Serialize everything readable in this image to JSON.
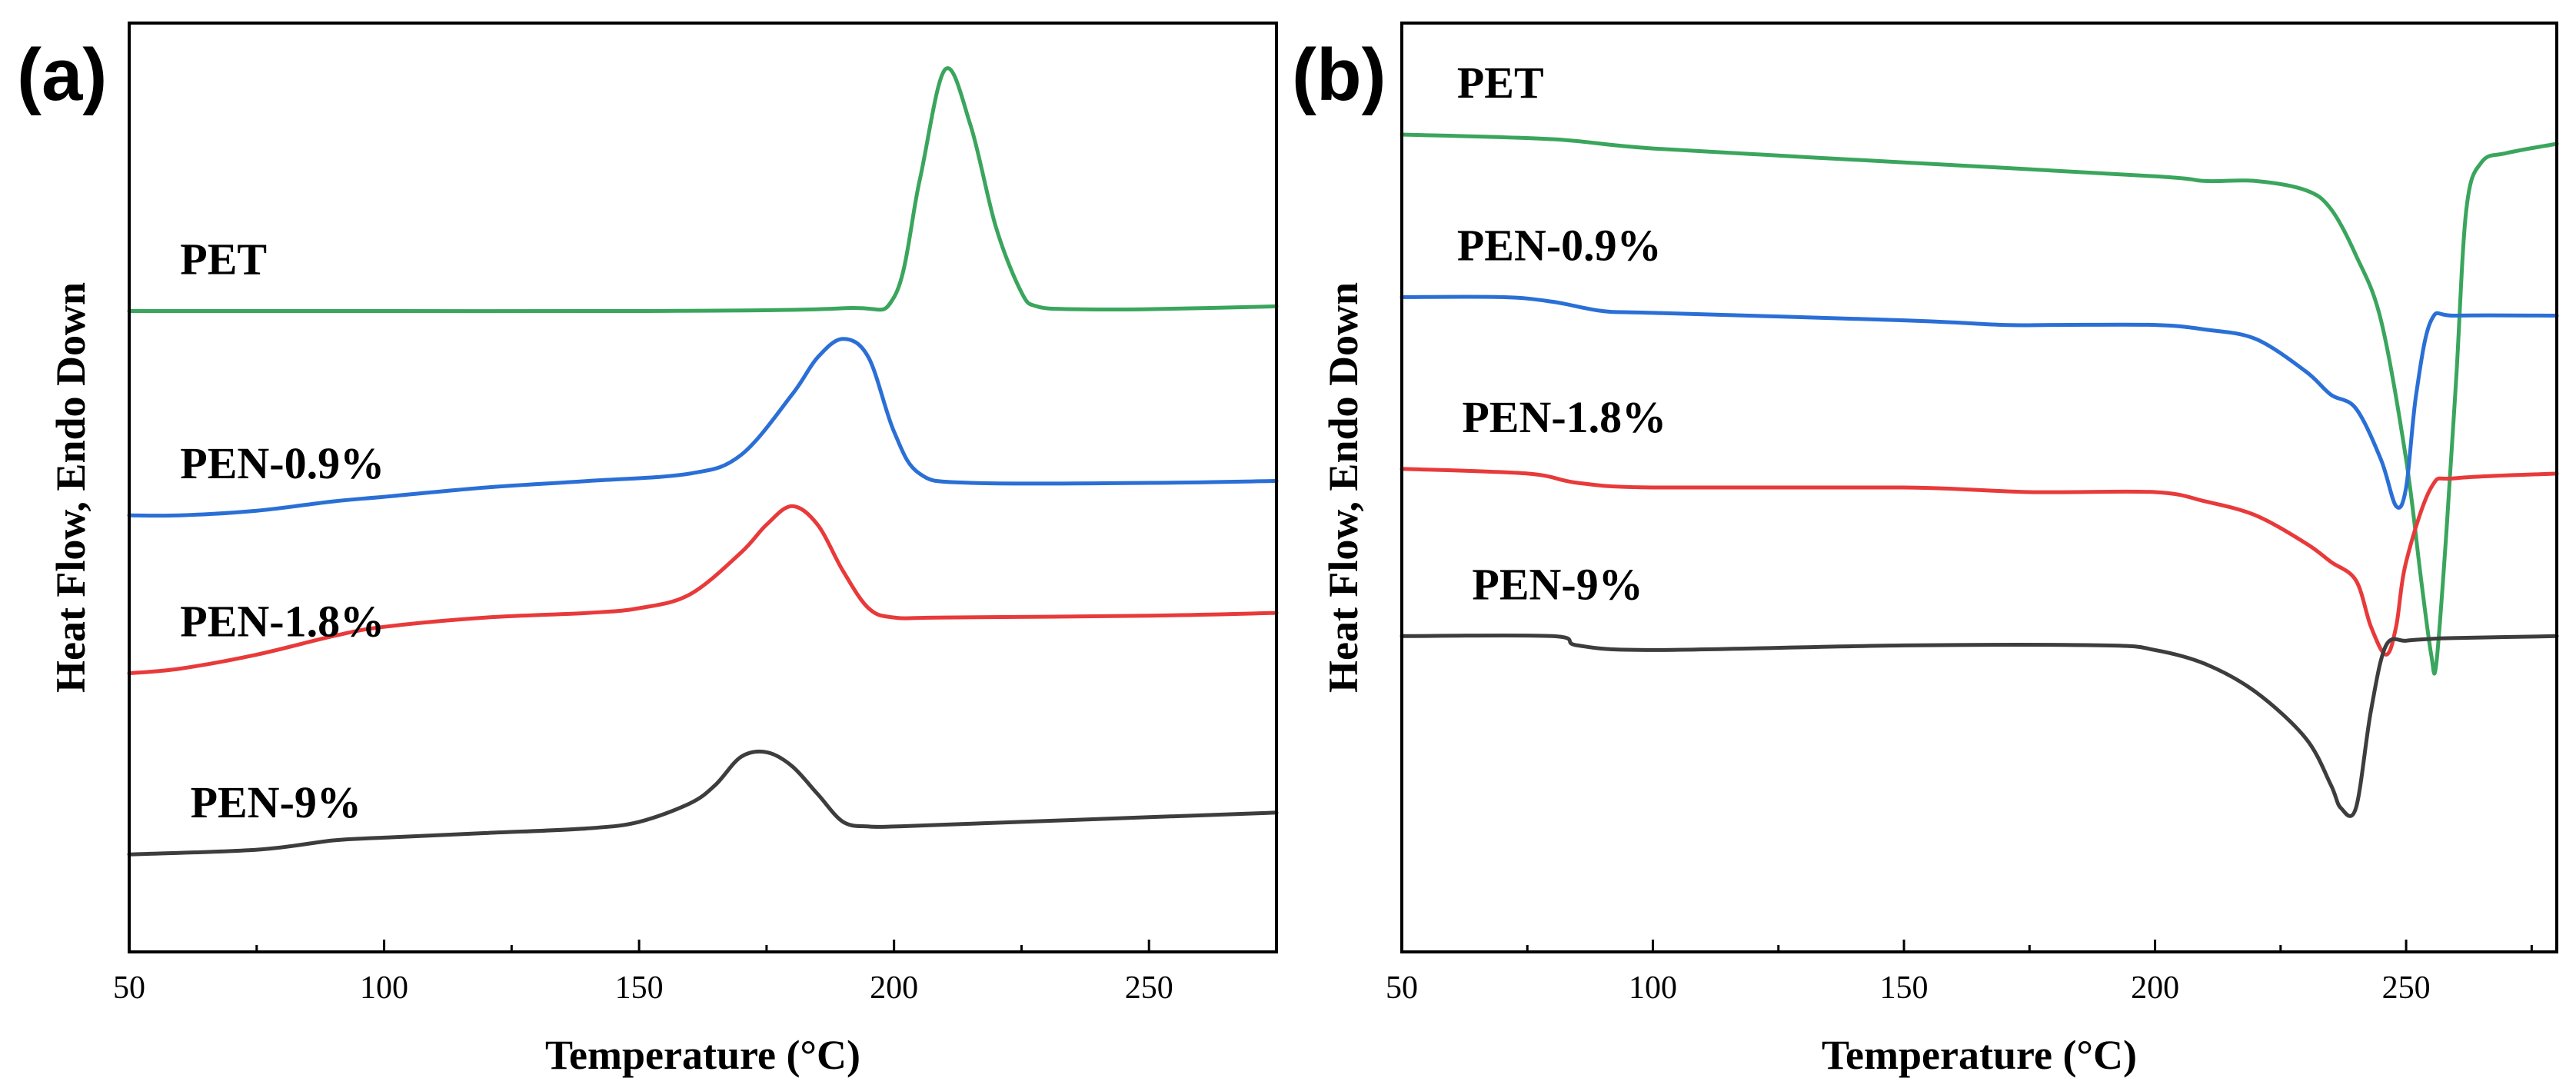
{
  "chart_data": [
    {
      "panel_label": "(a)",
      "type": "line",
      "title": "",
      "xlabel": "Temperature (°C)",
      "ylabel": "Heat Flow, Endo Down",
      "xlim": [
        50,
        275
      ],
      "ylim": [
        0,
        1
      ],
      "x_ticks": [
        50,
        100,
        150,
        200,
        250
      ],
      "y_ticks": [],
      "grid": false,
      "series": [
        {
          "name": "PET",
          "color": "#3aa55c",
          "label_x": 60,
          "x": [
            50,
            100,
            150,
            190,
            200,
            205,
            210,
            215,
            220,
            225,
            228,
            235,
            250,
            275
          ],
          "values": [
            0.69,
            0.69,
            0.69,
            0.693,
            0.705,
            0.83,
            0.95,
            0.89,
            0.78,
            0.71,
            0.695,
            0.692,
            0.692,
            0.695
          ]
        },
        {
          "name": "PEN-0.9%",
          "color": "#2a6fd6",
          "label_x": 60,
          "x": [
            50,
            60,
            75,
            90,
            100,
            120,
            140,
            160,
            170,
            180,
            185,
            190,
            195,
            200,
            205,
            215,
            250,
            275
          ],
          "values": [
            0.47,
            0.47,
            0.475,
            0.485,
            0.49,
            0.5,
            0.507,
            0.515,
            0.535,
            0.6,
            0.64,
            0.66,
            0.64,
            0.56,
            0.515,
            0.505,
            0.505,
            0.507
          ]
        },
        {
          "name": "PEN-1.8%",
          "color": "#e83a3a",
          "label_x": 60,
          "x": [
            50,
            60,
            75,
            90,
            100,
            120,
            140,
            150,
            160,
            170,
            175,
            180,
            185,
            190,
            195,
            200,
            210,
            250,
            275
          ],
          "values": [
            0.3,
            0.305,
            0.32,
            0.34,
            0.35,
            0.36,
            0.365,
            0.37,
            0.385,
            0.43,
            0.46,
            0.48,
            0.46,
            0.41,
            0.37,
            0.36,
            0.36,
            0.362,
            0.365
          ]
        },
        {
          "name": "PEN-9%",
          "color": "#3d3d3d",
          "label_x": 62,
          "x": [
            50,
            75,
            90,
            100,
            120,
            140,
            150,
            160,
            165,
            170,
            175,
            180,
            185,
            190,
            195,
            200,
            210,
            250,
            275
          ],
          "values": [
            0.105,
            0.11,
            0.12,
            0.123,
            0.128,
            0.133,
            0.14,
            0.16,
            0.18,
            0.21,
            0.215,
            0.2,
            0.17,
            0.14,
            0.135,
            0.135,
            0.137,
            0.145,
            0.15
          ]
        }
      ]
    },
    {
      "panel_label": "(b)",
      "type": "line",
      "title": "",
      "xlabel": "Temperature (°C)",
      "ylabel": "Heat Flow, Endo Down",
      "xlim": [
        50,
        280
      ],
      "ylim": [
        0,
        1
      ],
      "x_ticks": [
        50,
        100,
        150,
        200,
        250
      ],
      "y_ticks": [],
      "grid": false,
      "series": [
        {
          "name": "PET",
          "color": "#3aa55c",
          "label_x": 61,
          "x": [
            50,
            80,
            100,
            150,
            200,
            210,
            220,
            230,
            235,
            240,
            245,
            250,
            253,
            255,
            256,
            258,
            260,
            262,
            265,
            270,
            280
          ],
          "values": [
            0.88,
            0.875,
            0.865,
            0.85,
            0.835,
            0.83,
            0.83,
            0.82,
            0.8,
            0.75,
            0.68,
            0.53,
            0.4,
            0.32,
            0.31,
            0.45,
            0.62,
            0.8,
            0.85,
            0.86,
            0.87
          ]
        },
        {
          "name": "PEN-0.9%",
          "color": "#2a6fd6",
          "label_x": 61,
          "x": [
            50,
            70,
            80,
            90,
            100,
            150,
            170,
            180,
            200,
            210,
            220,
            230,
            235,
            240,
            245,
            248,
            250,
            252,
            255,
            260,
            280
          ],
          "values": [
            0.705,
            0.705,
            0.7,
            0.69,
            0.688,
            0.68,
            0.675,
            0.675,
            0.675,
            0.67,
            0.66,
            0.625,
            0.6,
            0.585,
            0.53,
            0.48,
            0.5,
            0.6,
            0.68,
            0.685,
            0.685
          ]
        },
        {
          "name": "PEN-1.8%",
          "color": "#e83a3a",
          "label_x": 62,
          "x": [
            50,
            75,
            85,
            100,
            150,
            175,
            200,
            210,
            220,
            230,
            235,
            240,
            243,
            246,
            248,
            250,
            255,
            260,
            280
          ],
          "values": [
            0.52,
            0.515,
            0.505,
            0.5,
            0.5,
            0.495,
            0.495,
            0.485,
            0.47,
            0.44,
            0.42,
            0.4,
            0.35,
            0.32,
            0.35,
            0.42,
            0.5,
            0.51,
            0.515
          ]
        },
        {
          "name": "PEN-9%",
          "color": "#3d3d3d",
          "label_x": 64,
          "x": [
            50,
            80,
            85,
            100,
            150,
            190,
            200,
            210,
            220,
            230,
            235,
            237,
            240,
            243,
            246,
            250,
            255,
            260,
            280
          ],
          "values": [
            0.34,
            0.34,
            0.33,
            0.325,
            0.33,
            0.33,
            0.325,
            0.31,
            0.28,
            0.23,
            0.18,
            0.155,
            0.155,
            0.26,
            0.33,
            0.335,
            0.337,
            0.338,
            0.34
          ]
        }
      ]
    }
  ]
}
